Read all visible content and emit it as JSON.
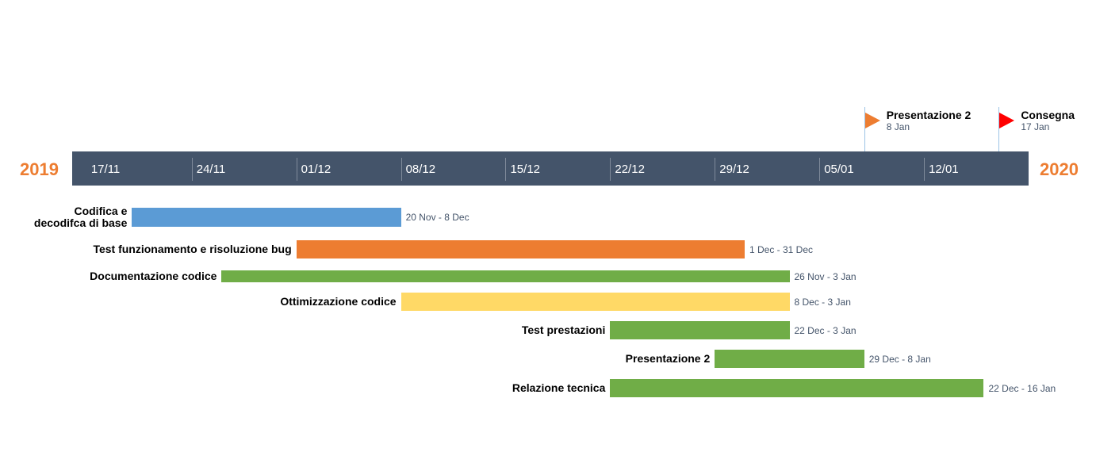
{
  "chart_data": {
    "type": "gantt",
    "year_start": "2019",
    "year_end": "2020",
    "axis": {
      "start": "2019-11-16",
      "end": "2020-01-19",
      "ticks": [
        {
          "date": "2019-11-17",
          "label": "17/11"
        },
        {
          "date": "2019-11-24",
          "label": "24/11"
        },
        {
          "date": "2019-12-01",
          "label": "01/12"
        },
        {
          "date": "2019-12-08",
          "label": "08/12"
        },
        {
          "date": "2019-12-15",
          "label": "15/12"
        },
        {
          "date": "2019-12-22",
          "label": "22/12"
        },
        {
          "date": "2019-12-29",
          "label": "29/12"
        },
        {
          "date": "2020-01-05",
          "label": "05/01"
        },
        {
          "date": "2020-01-12",
          "label": "12/01"
        }
      ]
    },
    "milestones": [
      {
        "name": "Presentazione 2",
        "date": "2020-01-08",
        "date_label": "8 Jan",
        "color": "#ed7d31"
      },
      {
        "name": "Consegna",
        "date": "2020-01-17",
        "date_label": "17 Jan",
        "color": "#ff0000"
      }
    ],
    "tasks": [
      {
        "name": "Codifica e decodifca di base",
        "start": "2019-11-20",
        "end": "2019-12-08",
        "date_label": "20 Nov - 8 Dec",
        "color": "#5b9bd5"
      },
      {
        "name": "Test funzionamento e risoluzione bug",
        "start": "2019-12-01",
        "end": "2019-12-31",
        "date_label": "1 Dec - 31 Dec",
        "color": "#ed7d31"
      },
      {
        "name": "Documentazione codice",
        "start": "2019-11-26",
        "end": "2020-01-03",
        "date_label": "26 Nov - 3 Jan",
        "color": "#70ad47"
      },
      {
        "name": "Ottimizzazione codice",
        "start": "2019-12-08",
        "end": "2020-01-03",
        "date_label": "8 Dec - 3 Jan",
        "color": "#ffd966"
      },
      {
        "name": "Test prestazioni",
        "start": "2019-12-22",
        "end": "2020-01-03",
        "date_label": "22 Dec - 3 Jan",
        "color": "#70ad47"
      },
      {
        "name": "Presentazione 2",
        "start": "2019-12-29",
        "end": "2020-01-08",
        "date_label": "29 Dec - 8 Jan",
        "color": "#70ad47"
      },
      {
        "name": "Relazione tecnica",
        "start": "2019-12-22",
        "end": "2020-01-16",
        "date_label": "22 Dec - 16 Jan",
        "color": "#70ad47"
      }
    ]
  }
}
